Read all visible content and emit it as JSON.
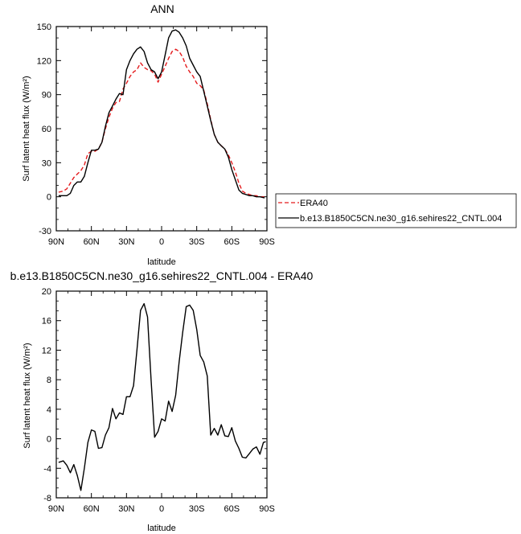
{
  "chart_data": [
    {
      "type": "line",
      "title": "ANN",
      "xlabel": "latitude",
      "ylabel": "Surf latent heat flux (W/m²)",
      "ylim": [
        -30,
        150
      ],
      "yticks": [
        -30,
        0,
        30,
        60,
        90,
        120,
        150
      ],
      "yticklabels": [
        "-30",
        "0",
        "30",
        "60",
        "90",
        "120",
        "150"
      ],
      "xlim": [
        90,
        -90
      ],
      "xticks": [
        90,
        60,
        30,
        0,
        -30,
        -60,
        -90
      ],
      "xticklabels": [
        "90N",
        "60N",
        "30N",
        "0",
        "30S",
        "60S",
        "90S"
      ],
      "legend": {
        "position": "right"
      },
      "series": [
        {
          "name": "ERA40",
          "color": "#e41a1c",
          "dash": "dashed",
          "x": [
            88,
            84,
            81,
            78,
            75,
            72,
            69,
            66,
            63,
            60,
            57,
            54,
            51,
            48,
            45,
            42,
            39,
            36,
            33,
            30,
            27,
            24,
            21,
            18,
            15,
            12,
            9,
            6,
            3,
            0,
            -3,
            -6,
            -9,
            -12,
            -15,
            -18,
            -21,
            -24,
            -27,
            -30,
            -33,
            -36,
            -39,
            -42,
            -45,
            -48,
            -51,
            -54,
            -57,
            -60,
            -63,
            -66,
            -69,
            -72,
            -75,
            -78,
            -81,
            -84,
            -88
          ],
          "y": [
            4,
            5,
            7,
            12,
            17,
            20,
            23,
            28,
            38,
            40,
            40,
            42,
            48,
            60,
            70,
            78,
            83,
            84,
            95,
            100,
            106,
            110,
            112,
            118,
            114,
            112,
            111,
            108,
            101,
            108,
            115,
            122,
            128,
            130,
            128,
            123,
            115,
            110,
            106,
            100,
            98,
            94,
            82,
            68,
            55,
            48,
            45,
            42,
            37,
            30,
            22,
            12,
            5,
            3,
            2,
            1,
            1,
            0,
            0
          ]
        },
        {
          "name": "b.e13.B1850C5CN.ne30_g16.sehires22_CNTL.004",
          "color": "#000000",
          "dash": "solid",
          "x": [
            88,
            84,
            81,
            78,
            75,
            72,
            69,
            66,
            63,
            60,
            57,
            54,
            51,
            48,
            45,
            42,
            39,
            36,
            33,
            30,
            27,
            24,
            21,
            18,
            15,
            12,
            9,
            6,
            3,
            0,
            -3,
            -6,
            -9,
            -12,
            -15,
            -18,
            -21,
            -24,
            -27,
            -30,
            -33,
            -36,
            -39,
            -42,
            -45,
            -48,
            -51,
            -54,
            -57,
            -60,
            -63,
            -66,
            -69,
            -72,
            -75,
            -78,
            -81,
            -84,
            -88
          ],
          "y": [
            1,
            1,
            1,
            3,
            10,
            13,
            13,
            18,
            30,
            41,
            41,
            42,
            48,
            62,
            74,
            80,
            86,
            91,
            90,
            112,
            120,
            126,
            130,
            132,
            128,
            118,
            112,
            110,
            104,
            110,
            125,
            140,
            146,
            147,
            145,
            140,
            133,
            122,
            116,
            110,
            106,
            93,
            80,
            67,
            55,
            48,
            45,
            42,
            35,
            24,
            15,
            6,
            3,
            2,
            1,
            1,
            0,
            0,
            -1
          ]
        }
      ]
    },
    {
      "type": "line",
      "title": "b.e13.B1850C5CN.ne30_g16.sehires22_CNTL.004 - ERA40",
      "xlabel": "latitude",
      "ylabel": "Surf latent heat flux (W/m²)",
      "ylim": [
        -8,
        20
      ],
      "yticks": [
        -8,
        -4,
        0,
        4,
        8,
        12,
        16,
        20
      ],
      "yticklabels": [
        "-8",
        "-4",
        "0",
        "4",
        "8",
        "12",
        "16",
        "20"
      ],
      "xlim": [
        90,
        -90
      ],
      "xticks": [
        90,
        60,
        30,
        0,
        -30,
        -60,
        -90
      ],
      "xticklabels": [
        "90N",
        "60N",
        "30N",
        "0",
        "30S",
        "60S",
        "90S"
      ],
      "series": [
        {
          "color": "#000000",
          "dash": "solid",
          "x": [
            88,
            84,
            81,
            78,
            75,
            72,
            69,
            66,
            63,
            60,
            57,
            54,
            51,
            48,
            45,
            42,
            39,
            36,
            33,
            30,
            27,
            24,
            21,
            18,
            15,
            12,
            9,
            6,
            3,
            0,
            -3,
            -6,
            -9,
            -12,
            -15,
            -18,
            -21,
            -24,
            -27,
            -30,
            -33,
            -36,
            -39,
            -42,
            -45,
            -48,
            -51,
            -54,
            -57,
            -60,
            -63,
            -66,
            -69,
            -72,
            -75,
            -78,
            -81,
            -84,
            -87,
            -89
          ],
          "y": [
            -3.2,
            -3.0,
            -3.6,
            -4.6,
            -3.5,
            -5.0,
            -7.0,
            -4.0,
            -0.5,
            1.2,
            1.0,
            -1.3,
            -1.2,
            0.5,
            1.5,
            4.1,
            2.7,
            3.5,
            3.3,
            5.7,
            5.7,
            7.2,
            12.1,
            17.4,
            18.3,
            16.5,
            8.0,
            0.2,
            1.0,
            2.7,
            2.4,
            5.1,
            3.7,
            5.9,
            10.4,
            14.4,
            17.9,
            18.1,
            17.4,
            14.8,
            11.3,
            10.4,
            8.5,
            0.5,
            1.4,
            0.5,
            1.9,
            0.4,
            0.3,
            1.5,
            -0.3,
            -1.3,
            -2.5,
            -2.6,
            -2.0,
            -1.4,
            -1.1,
            -2.1,
            -0.5,
            -0.4
          ]
        }
      ]
    }
  ]
}
